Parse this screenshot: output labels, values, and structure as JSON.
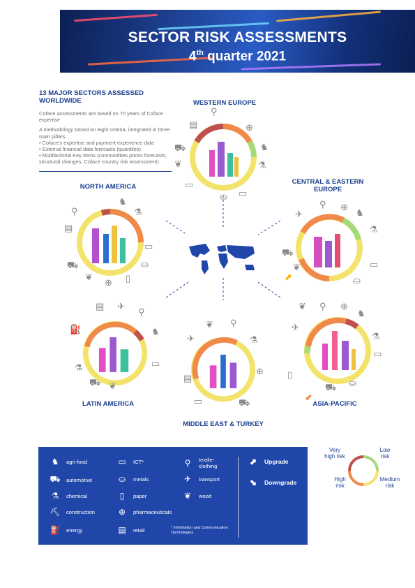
{
  "header": {
    "title": "SECTOR RISK ASSESSMENTS",
    "quarter_num": "4",
    "quarter_sup": "th",
    "quarter_rest": " quarter 2021"
  },
  "intro": {
    "heading": "13 MAJOR SECTORS ASSESSED WORLDWIDE",
    "p1": "Coface assessments are based on 70 years of Coface expertise",
    "p2": "A methodology based on eight criteria, integrated in three main pillars:",
    "bullets": [
      "• Coface's expertise and payment experience data",
      "• External financial data forecasts (quantiles)",
      "• Multifactorial Key Items (commodities prices forecasts, structural changes, Coface country risk assessment)"
    ]
  },
  "regions": {
    "western_europe": "WESTERN EUROPE",
    "north_america": "NORTH AMERICA",
    "central_eastern_europe_1": "CENTRAL & EASTERN",
    "central_eastern_europe_2": "EUROPE",
    "latin_america": "LATIN AMERICA",
    "middle_east_turkey": "MIDDLE EAST & TURKEY",
    "asia_pacific": "ASIA-PACIFIC"
  },
  "legend": {
    "sectors": [
      {
        "label": "agri-food",
        "icon": "cow-icon"
      },
      {
        "label": "automotive",
        "icon": "car-icon"
      },
      {
        "label": "chemical",
        "icon": "flask-icon"
      },
      {
        "label": "construction",
        "icon": "crane-icon"
      },
      {
        "label": "energy",
        "icon": "fuel-pump-icon"
      },
      {
        "label": "ICT*",
        "icon": "laptop-icon"
      },
      {
        "label": "metals",
        "icon": "mine-cart-icon"
      },
      {
        "label": "paper",
        "icon": "paper-icon"
      },
      {
        "label": "pharmaceuticals",
        "icon": "plus-icon"
      },
      {
        "label": "retail",
        "icon": "cash-register-icon"
      },
      {
        "label": "textile-clothing",
        "icon": "hanger-icon"
      },
      {
        "label": "transport",
        "icon": "truck-plane-icon"
      },
      {
        "label": "wood",
        "icon": "tree-icon"
      }
    ],
    "textile_line1": "textile-",
    "textile_line2": "clothing",
    "upgrade": "Upgrade",
    "downgrade": "Downgrade",
    "footnote": "* Information and Communication Technologies"
  },
  "risk_key": {
    "very_high_1": "Very",
    "very_high_2": "high risk",
    "low_1": "Low",
    "low_2": "risk",
    "high_1": "High",
    "high_2": "risk",
    "medium_1": "Medium",
    "medium_2": "risk",
    "colors": {
      "low": "#a6d97a",
      "medium": "#f4e36b",
      "high": "#f08a4b",
      "very_high": "#c0504d"
    }
  }
}
